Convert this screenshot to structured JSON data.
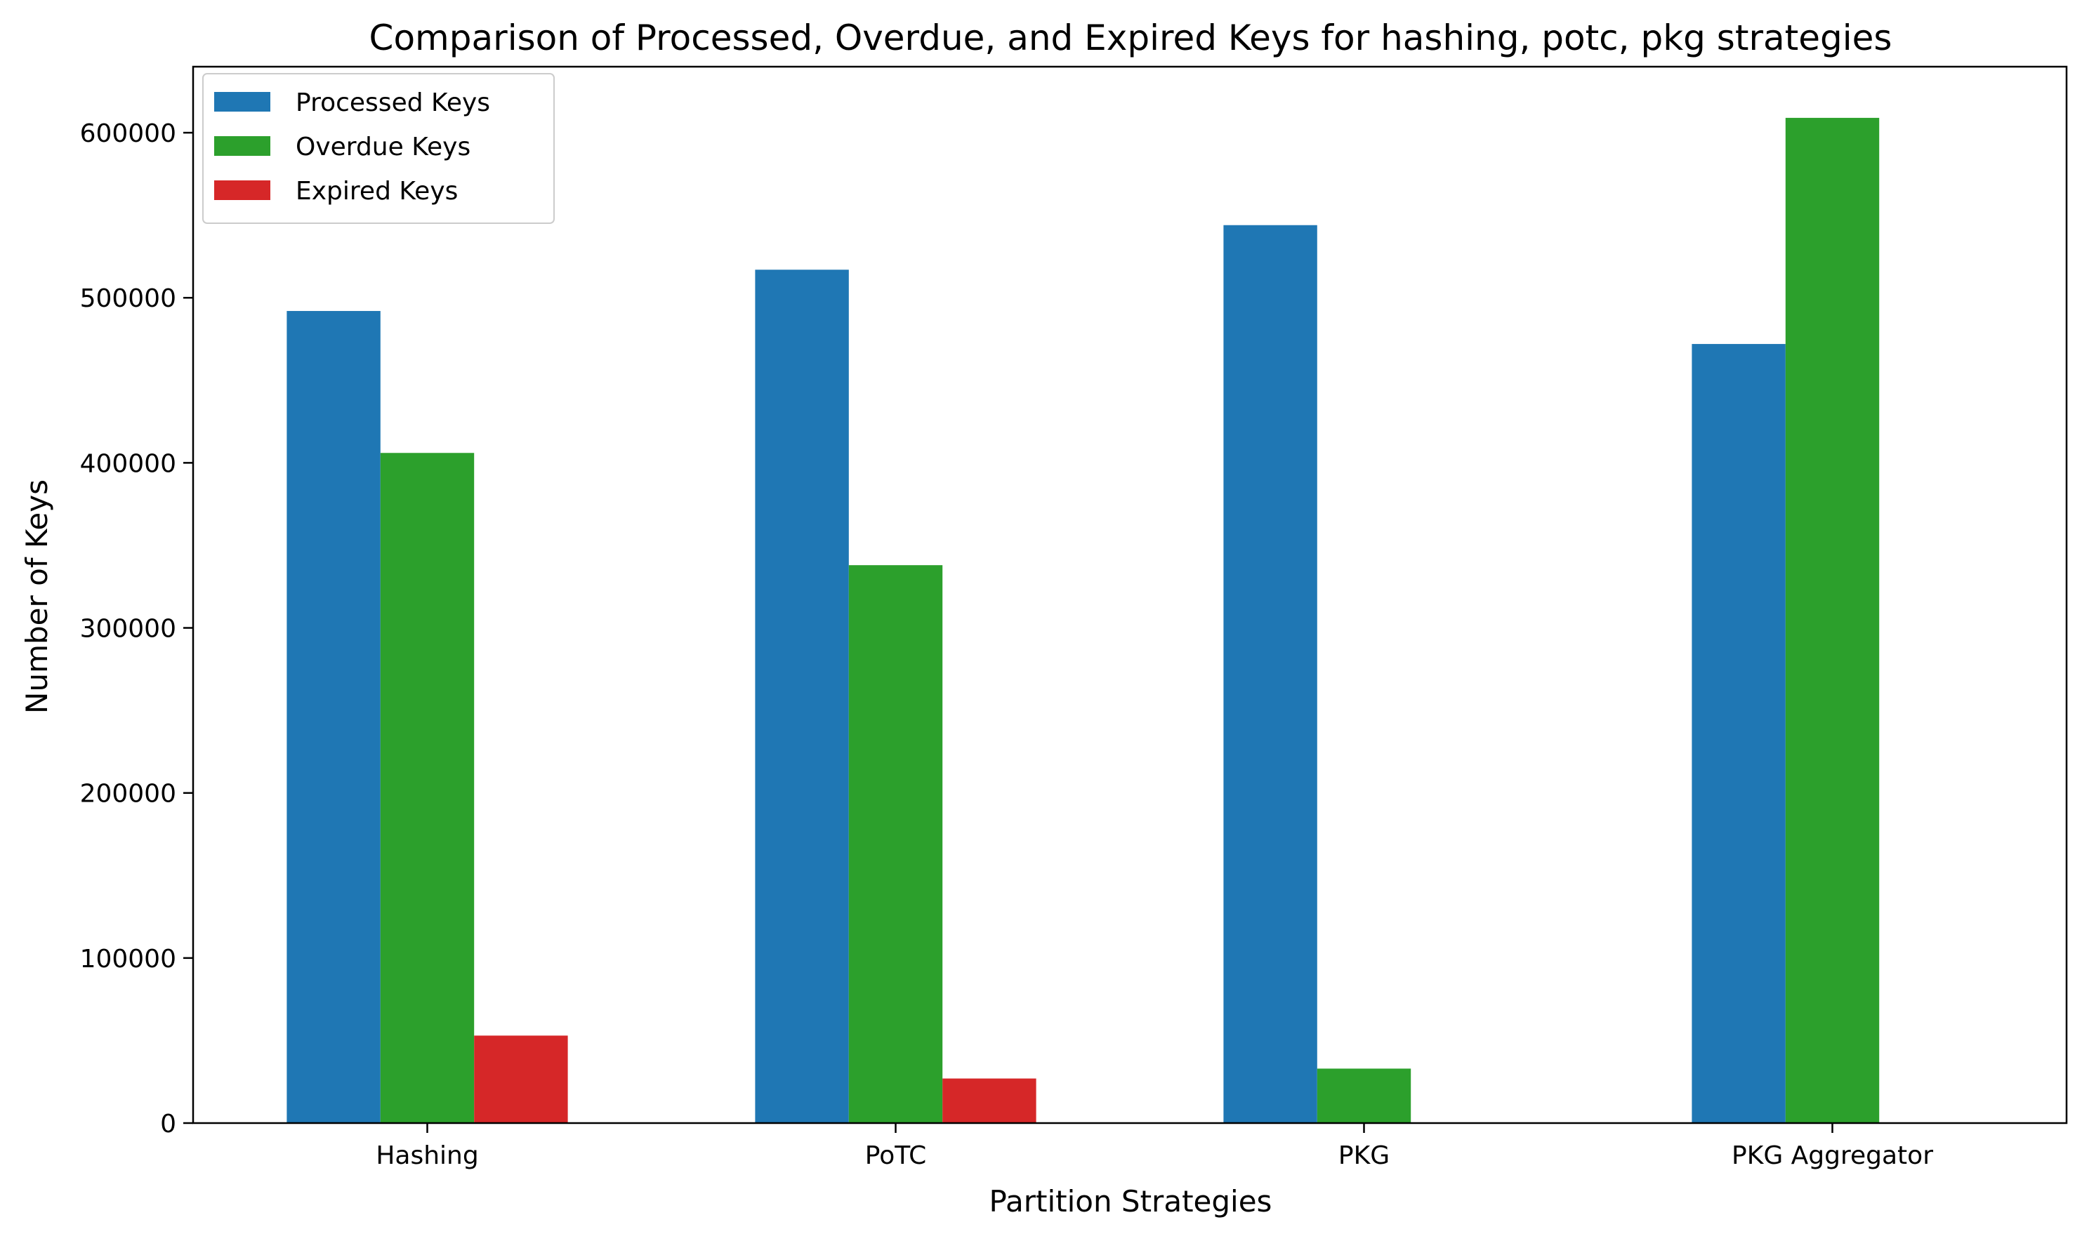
{
  "chart_data": {
    "type": "bar",
    "title": "Comparison of Processed, Overdue, and Expired Keys for hashing, potc, pkg strategies",
    "xlabel": "Partition Strategies",
    "ylabel": "Number of Keys",
    "categories": [
      "Hashing",
      "PoTC",
      "PKG",
      "PKG Aggregator"
    ],
    "series": [
      {
        "name": "Processed Keys",
        "color": "#1f77b4",
        "values": [
          492000,
          517000,
          544000,
          472000
        ]
      },
      {
        "name": "Overdue Keys",
        "color": "#2ca02c",
        "values": [
          406000,
          338000,
          33000,
          609000
        ]
      },
      {
        "name": "Expired Keys",
        "color": "#d62728",
        "values": [
          53000,
          27000,
          0,
          0
        ]
      }
    ],
    "ylim": [
      0,
      640000
    ],
    "yticks": [
      0,
      100000,
      200000,
      300000,
      400000,
      500000,
      600000
    ],
    "ytick_labels": [
      "0",
      "100000",
      "200000",
      "300000",
      "400000",
      "500000",
      "600000"
    ],
    "grid": false,
    "legend_position": "top-left"
  }
}
